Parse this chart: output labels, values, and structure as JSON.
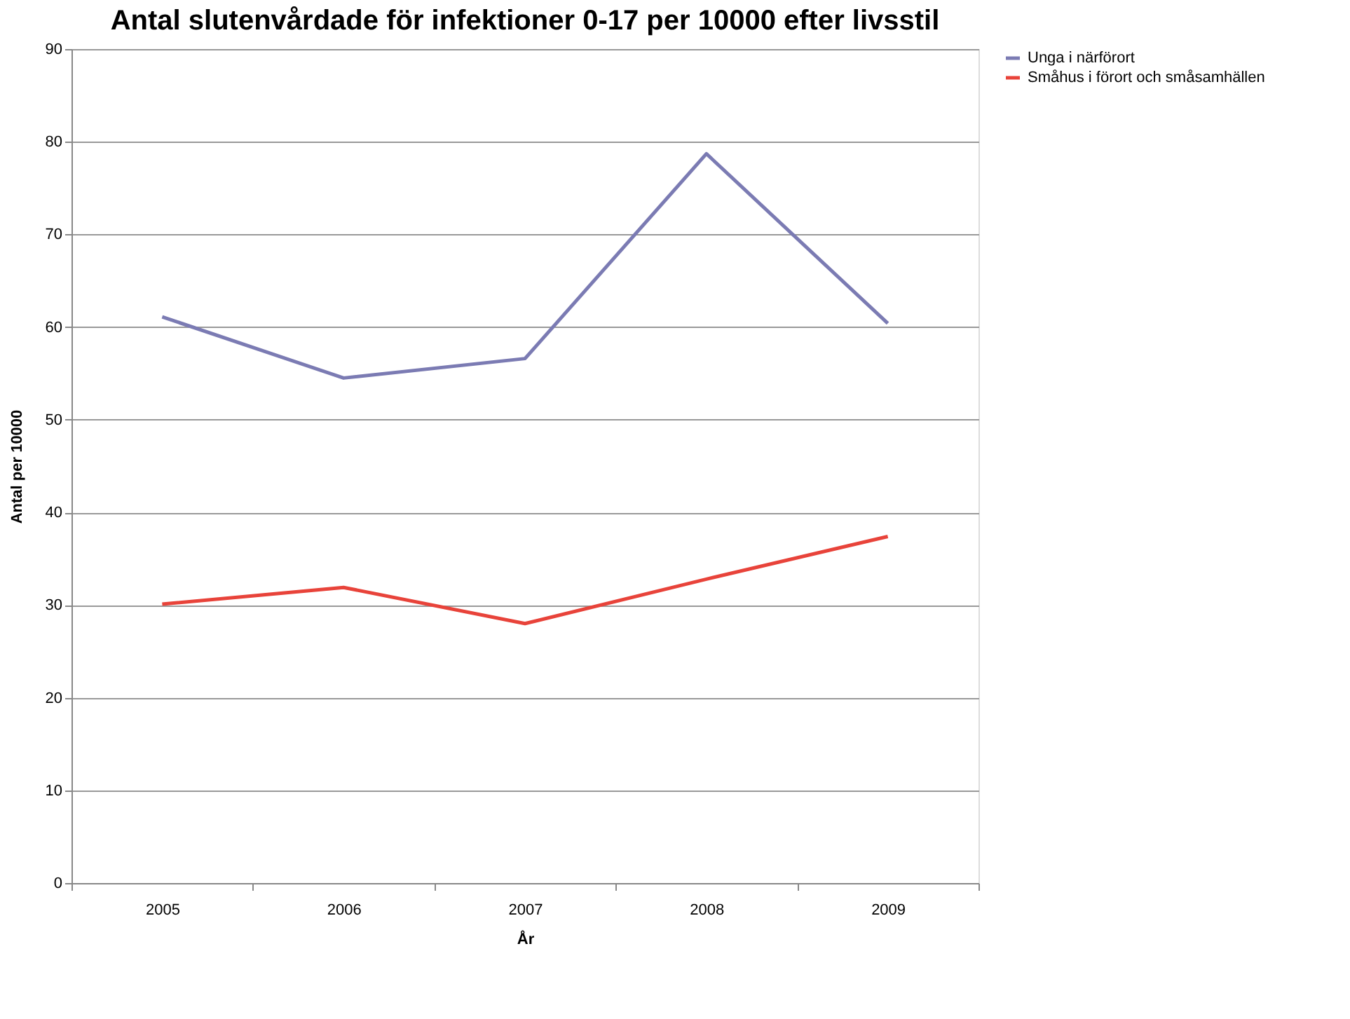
{
  "chart_data": {
    "type": "line",
    "title": "Antal slutenvårdade för infektioner 0-17 per 10000 efter livsstil",
    "xlabel": "År",
    "ylabel": "Antal per 10000",
    "categories": [
      "2005",
      "2006",
      "2007",
      "2008",
      "2009"
    ],
    "series": [
      {
        "name": "Unga i närförort",
        "color": "#7b7bb3",
        "values": [
          61.1,
          54.5,
          56.6,
          78.7,
          60.4
        ]
      },
      {
        "name": "Småhus i förort och småsamhällen",
        "color": "#e8433a",
        "values": [
          30.1,
          31.9,
          28.0,
          32.8,
          37.4
        ]
      }
    ],
    "ylim": [
      0,
      90
    ],
    "yticks": [
      0,
      10,
      20,
      30,
      40,
      50,
      60,
      70,
      80,
      90
    ],
    "grid": "y",
    "legend": "right",
    "marker": "none",
    "line_style": "solid"
  }
}
